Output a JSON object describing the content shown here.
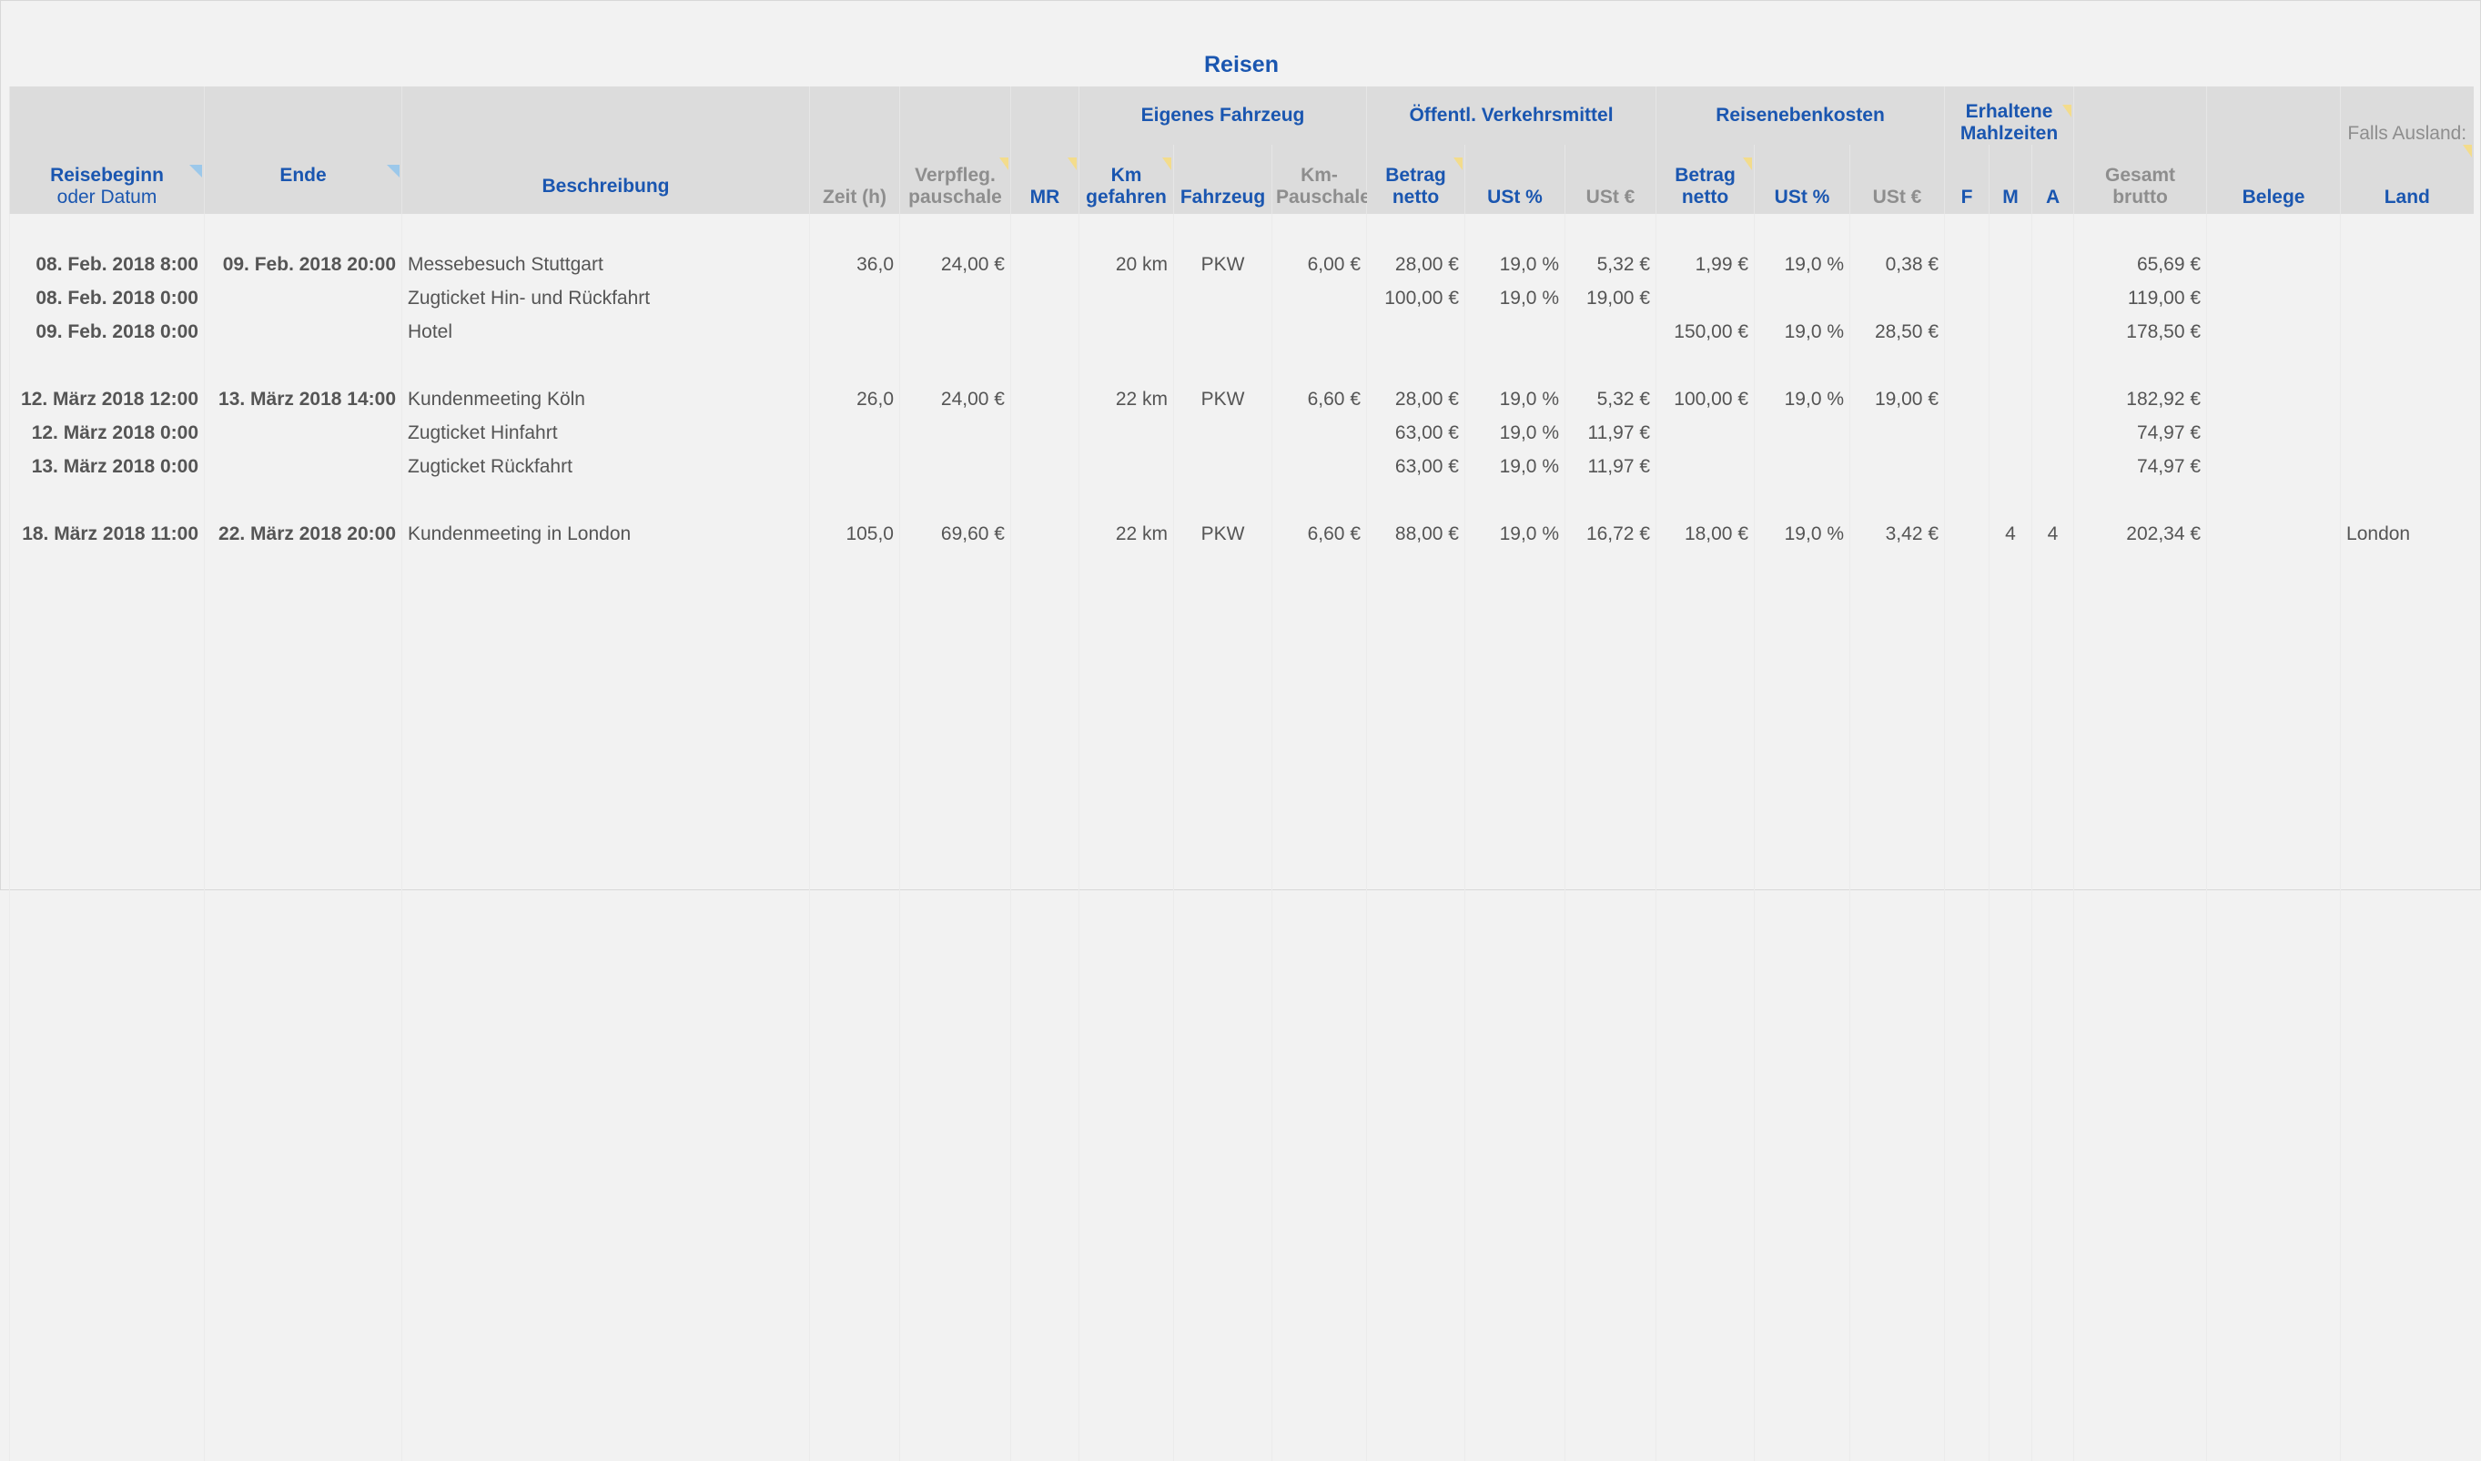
{
  "title": "Reisen",
  "headers": {
    "reisebeginn": "Reisebeginn",
    "reisebeginn_sub": "oder Datum",
    "ende": "Ende",
    "beschreibung": "Beschreibung",
    "zeit": "Zeit (h)",
    "verpfleg": "Verpfleg. pauschale",
    "mr": "MR",
    "eigenes_fahrzeug": "Eigenes Fahrzeug",
    "km_gefahren": "Km gefahren",
    "fahrzeug": "Fahrzeug",
    "km_pauschale": "Km-Pauschale",
    "oeffentl": "Öffentl. Verkehrsmittel",
    "betrag_netto": "Betrag netto",
    "ust_pct": "USt %",
    "ust_eur": "USt €",
    "reisenebenkosten": "Reisenebenkosten",
    "erhaltene": "Erhaltene Mahlzeiten",
    "f": "F",
    "m": "M",
    "a": "A",
    "gesamt": "Gesamt brutto",
    "belege": "Belege",
    "falls_ausland": "Falls Ausland:",
    "land": "Land"
  },
  "rows": [
    null,
    {
      "begin": "08. Feb. 2018  8:00",
      "end": "09. Feb. 2018  20:00",
      "desc": "Messebesuch Stuttgart",
      "zeit": "36,0",
      "verpfleg": "24,00 €",
      "mr": "",
      "km": "20 km",
      "fz": "PKW",
      "kmp": "6,00 €",
      "ob": "28,00 €",
      "oup": "19,0 %",
      "oue": "5,32 €",
      "rb": "1,99 €",
      "rup": "19,0 %",
      "rue": "0,38 €",
      "f": "",
      "m": "",
      "a": "",
      "ges": "65,69 €",
      "belege": "",
      "land": ""
    },
    {
      "begin": "08. Feb. 2018  0:00",
      "end": "",
      "desc": "Zugticket Hin- und Rückfahrt",
      "zeit": "",
      "verpfleg": "",
      "mr": "",
      "km": "",
      "fz": "",
      "kmp": "",
      "ob": "100,00 €",
      "oup": "19,0 %",
      "oue": "19,00 €",
      "rb": "",
      "rup": "",
      "rue": "",
      "f": "",
      "m": "",
      "a": "",
      "ges": "119,00 €",
      "belege": "",
      "land": ""
    },
    {
      "begin": "09. Feb. 2018  0:00",
      "end": "",
      "desc": "Hotel",
      "zeit": "",
      "verpfleg": "",
      "mr": "",
      "km": "",
      "fz": "",
      "kmp": "",
      "ob": "",
      "oup": "",
      "oue": "",
      "rb": "150,00 €",
      "rup": "19,0 %",
      "rue": "28,50 €",
      "f": "",
      "m": "",
      "a": "",
      "ges": "178,50 €",
      "belege": "",
      "land": ""
    },
    null,
    {
      "begin": "12. März 2018  12:00",
      "end": "13. März 2018  14:00",
      "desc": "Kundenmeeting Köln",
      "zeit": "26,0",
      "verpfleg": "24,00 €",
      "mr": "",
      "km": "22 km",
      "fz": "PKW",
      "kmp": "6,60 €",
      "ob": "28,00 €",
      "oup": "19,0 %",
      "oue": "5,32 €",
      "rb": "100,00 €",
      "rup": "19,0 %",
      "rue": "19,00 €",
      "f": "",
      "m": "",
      "a": "",
      "ges": "182,92 €",
      "belege": "",
      "land": ""
    },
    {
      "begin": "12. März 2018  0:00",
      "end": "",
      "desc": "Zugticket Hinfahrt",
      "zeit": "",
      "verpfleg": "",
      "mr": "",
      "km": "",
      "fz": "",
      "kmp": "",
      "ob": "63,00 €",
      "oup": "19,0 %",
      "oue": "11,97 €",
      "rb": "",
      "rup": "",
      "rue": "",
      "f": "",
      "m": "",
      "a": "",
      "ges": "74,97 €",
      "belege": "",
      "land": ""
    },
    {
      "begin": "13. März 2018  0:00",
      "end": "",
      "desc": "Zugticket Rückfahrt",
      "zeit": "",
      "verpfleg": "",
      "mr": "",
      "km": "",
      "fz": "",
      "kmp": "",
      "ob": "63,00 €",
      "oup": "19,0 %",
      "oue": "11,97 €",
      "rb": "",
      "rup": "",
      "rue": "",
      "f": "",
      "m": "",
      "a": "",
      "ges": "74,97 €",
      "belege": "",
      "land": ""
    },
    null,
    {
      "begin": "18. März 2018  11:00",
      "end": "22. März 2018  20:00",
      "desc": "Kundenmeeting in London",
      "zeit": "105,0",
      "verpfleg": "69,60 €",
      "mr": "",
      "km": "22 km",
      "fz": "PKW",
      "kmp": "6,60 €",
      "ob": "88,00 €",
      "oup": "19,0 %",
      "oue": "16,72 €",
      "rb": "18,00 €",
      "rup": "19,0 %",
      "rue": "3,42 €",
      "f": "",
      "m": "4",
      "a": "4",
      "ges": "202,34 €",
      "belege": "",
      "land": "London"
    }
  ],
  "colors": {
    "accent": "#1a56b0",
    "header_bg": "#dcdcdc",
    "muted": "#8e8e8e",
    "text": "#555555"
  }
}
